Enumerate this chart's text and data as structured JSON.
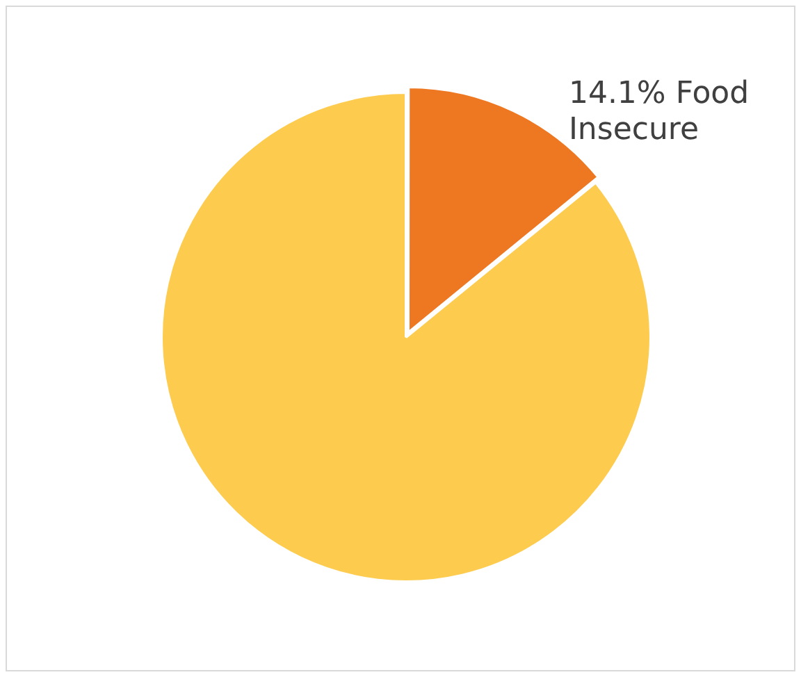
{
  "chart_data": {
    "type": "pie",
    "categories": [
      "Food Insecure",
      null
    ],
    "values": [
      14.1,
      85.9
    ],
    "colors": [
      "#ee7722",
      "#fdcc4f"
    ],
    "value_labels": [
      "14.1%",
      null
    ],
    "legend": false
  }
}
